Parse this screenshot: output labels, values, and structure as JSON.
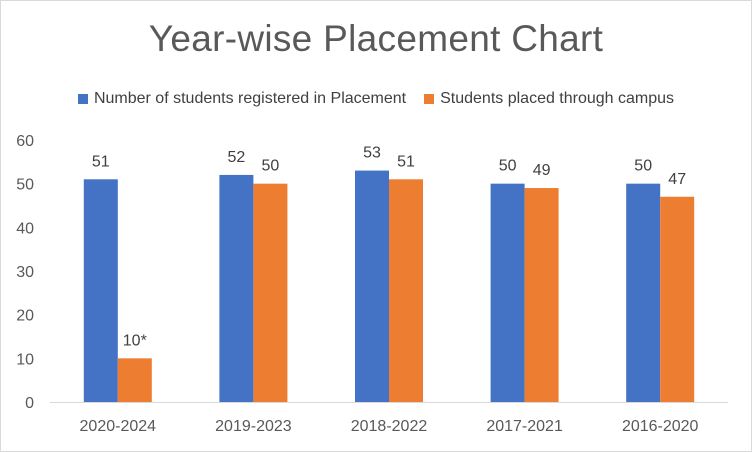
{
  "chart_data": {
    "type": "bar",
    "title": "Year-wise Placement Chart",
    "categories": [
      "2020-2024",
      "2019-2023",
      "2018-2022",
      "2017-2021",
      "2016-2020"
    ],
    "series": [
      {
        "name": "Number of students registered in Placement",
        "values": [
          51,
          52,
          53,
          50,
          50
        ],
        "labels": [
          "51",
          "52",
          "53",
          "50",
          "50"
        ],
        "color": "#4472c4"
      },
      {
        "name": "Students placed through campus",
        "values": [
          10,
          50,
          51,
          49,
          47
        ],
        "labels": [
          "10*",
          "50",
          "51",
          "49",
          "47"
        ],
        "color": "#ed7d31"
      }
    ],
    "ylim": [
      0,
      60
    ],
    "yticks": [
      "0",
      "10",
      "20",
      "30",
      "40",
      "50",
      "60"
    ],
    "grid": false,
    "legend": "top"
  }
}
